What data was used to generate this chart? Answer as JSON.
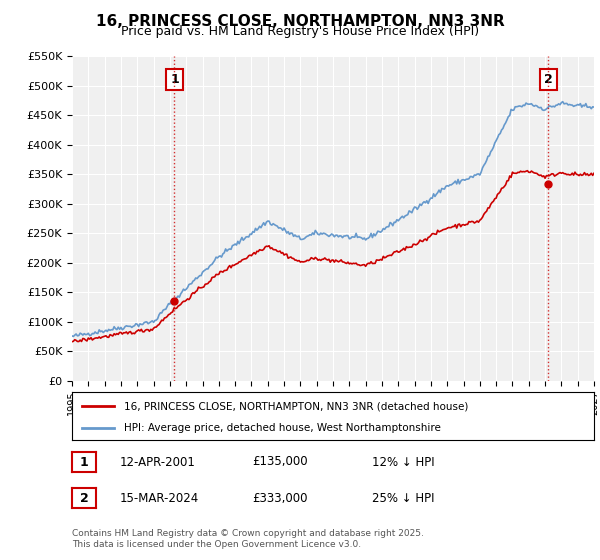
{
  "title": "16, PRINCESS CLOSE, NORTHAMPTON, NN3 3NR",
  "subtitle": "Price paid vs. HM Land Registry's House Price Index (HPI)",
  "ylabel_prefix": "£",
  "background_color": "#ffffff",
  "plot_bg_color": "#f0f0f0",
  "grid_color": "#ffffff",
  "red_line_color": "#cc0000",
  "blue_line_color": "#6699cc",
  "red_line_label": "16, PRINCESS CLOSE, NORTHAMPTON, NN3 3NR (detached house)",
  "blue_line_label": "HPI: Average price, detached house, West Northamptonshire",
  "annotation1_date": "12-APR-2001",
  "annotation1_price": "£135,000",
  "annotation1_hpi": "12% ↓ HPI",
  "annotation2_date": "15-MAR-2024",
  "annotation2_price": "£333,000",
  "annotation2_hpi": "25% ↓ HPI",
  "xmin": 1995,
  "xmax": 2027,
  "ymin": 0,
  "ymax": 550000,
  "yticks": [
    0,
    50000,
    100000,
    150000,
    200000,
    250000,
    300000,
    350000,
    400000,
    450000,
    500000,
    550000
  ],
  "xticks": [
    1995,
    1996,
    1997,
    1998,
    1999,
    2000,
    2001,
    2002,
    2003,
    2004,
    2005,
    2006,
    2007,
    2008,
    2009,
    2010,
    2011,
    2012,
    2013,
    2014,
    2015,
    2016,
    2017,
    2018,
    2019,
    2020,
    2021,
    2022,
    2023,
    2024,
    2025,
    2026,
    2027
  ],
  "sale1_x": 2001.28,
  "sale1_y": 135000,
  "sale2_x": 2024.21,
  "sale2_y": 333000,
  "vline1_x": 2001.28,
  "vline2_x": 2024.21,
  "footnote": "Contains HM Land Registry data © Crown copyright and database right 2025.\nThis data is licensed under the Open Government Licence v3.0."
}
